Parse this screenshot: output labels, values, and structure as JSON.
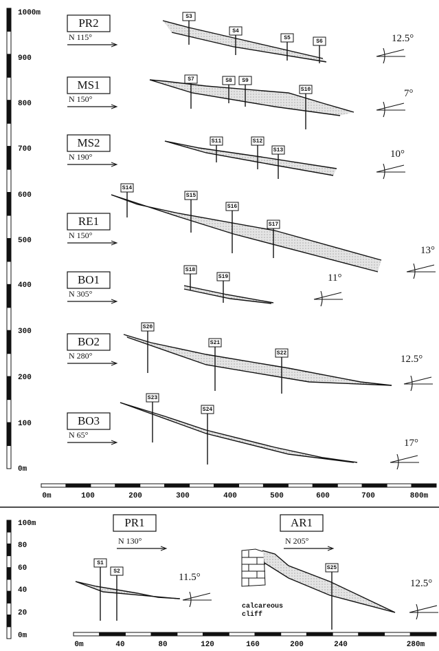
{
  "upper": {
    "y_scale": [
      "1000m",
      "900",
      "800",
      "700",
      "600",
      "500",
      "400",
      "300",
      "200",
      "100",
      "0m"
    ],
    "x_scale": [
      "0m",
      "100",
      "200",
      "300",
      "400",
      "500",
      "600",
      "700",
      "800m"
    ],
    "profiles": [
      {
        "name": "PR2",
        "orientation": "N 115°",
        "angle": "12.5°",
        "stations": [
          "S3",
          "S4",
          "S5",
          "S6"
        ]
      },
      {
        "name": "MS1",
        "orientation": "N 150°",
        "angle": "7°",
        "stations": [
          "S7",
          "S8",
          "S9",
          "S10"
        ]
      },
      {
        "name": "MS2",
        "orientation": "N 190°",
        "angle": "10°",
        "stations": [
          "S11",
          "S12",
          "S13"
        ]
      },
      {
        "name": "RE1",
        "orientation": "N 150°",
        "angle": "13°",
        "stations": [
          "S14",
          "S15",
          "S16",
          "S17"
        ]
      },
      {
        "name": "BO1",
        "orientation": "N 305°",
        "angle": "11°",
        "stations": [
          "S18",
          "S19"
        ]
      },
      {
        "name": "BO2",
        "orientation": "N 280°",
        "angle": "12.5°",
        "stations": [
          "S20",
          "S21",
          "S22"
        ]
      },
      {
        "name": "BO3",
        "orientation": "N 65°",
        "angle": "17°",
        "stations": [
          "S23",
          "S24"
        ]
      }
    ]
  },
  "lower": {
    "y_scale": [
      "100m",
      "80",
      "60",
      "40",
      "20",
      "0m"
    ],
    "x_scale": [
      "0m",
      "40",
      "80",
      "120",
      "160",
      "200",
      "240",
      "280m"
    ],
    "profiles": [
      {
        "name": "PR1",
        "orientation": "N 130°",
        "angle": "11.5°",
        "stations": [
          "S1",
          "S2"
        ]
      },
      {
        "name": "AR1",
        "orientation": "N 205°",
        "angle": "12.5°",
        "stations": [
          "S25"
        ],
        "cliff_label": [
          "calcareous",
          "cliff"
        ]
      }
    ]
  }
}
